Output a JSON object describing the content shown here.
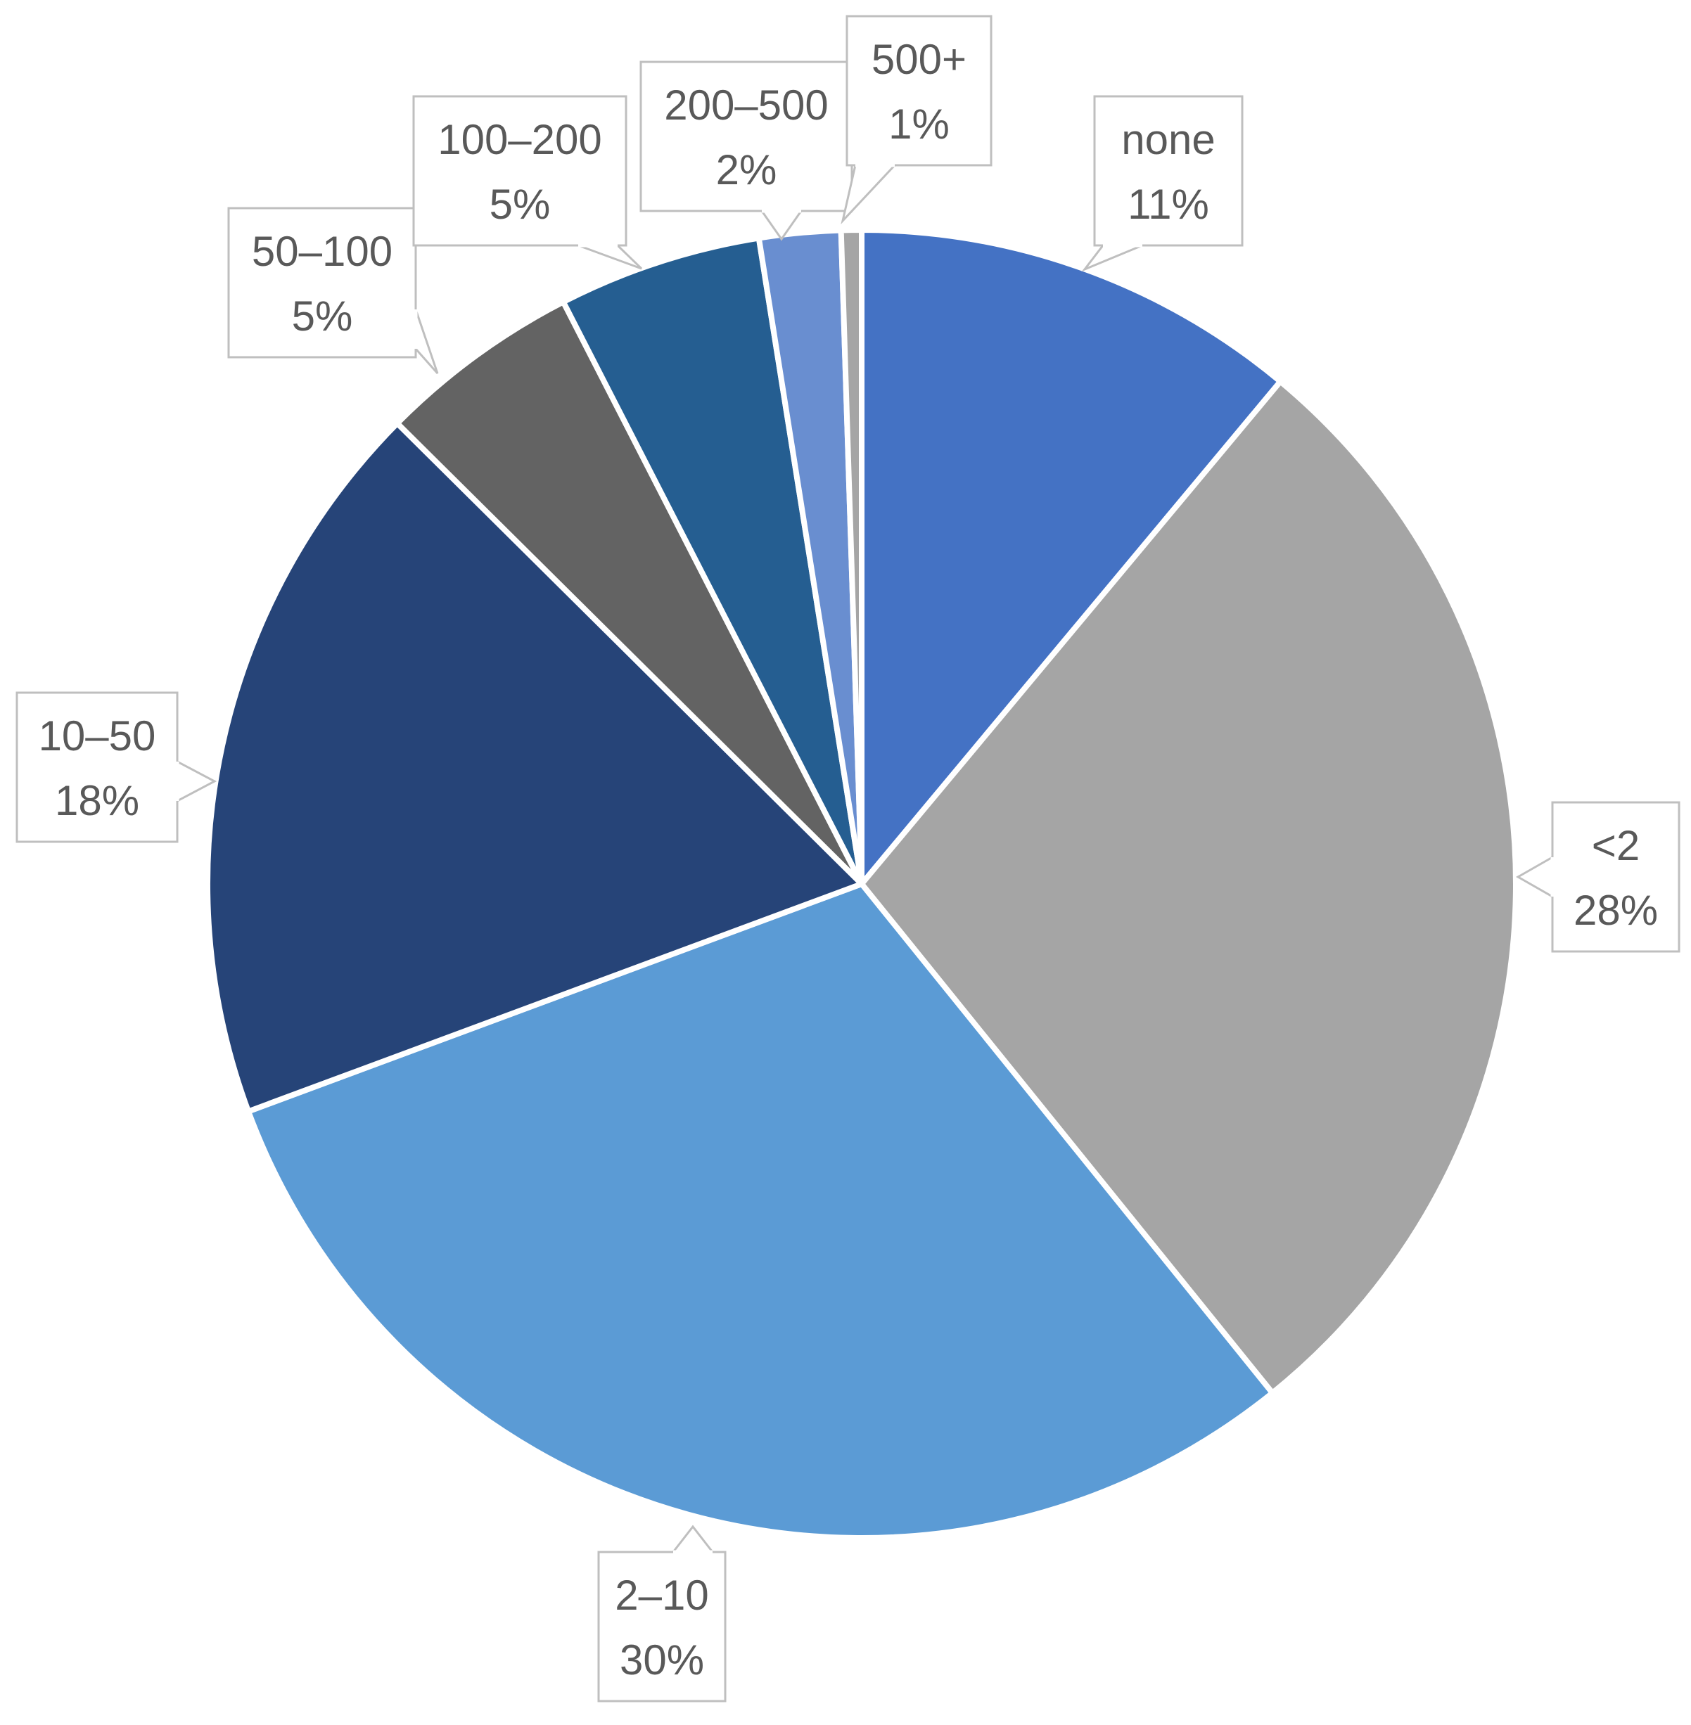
{
  "chart_data": {
    "type": "pie",
    "title": "",
    "start_angle_deg": 0,
    "direction": "clockwise",
    "slices": [
      {
        "label": "none",
        "value": 11,
        "value_label": "11%",
        "color": "#4472C4"
      },
      {
        "label": "<2",
        "value": 28,
        "value_label": "28%",
        "color": "#A5A5A5"
      },
      {
        "label": "2–10",
        "value": 30,
        "value_label": "30%",
        "color": "#5B9BD5"
      },
      {
        "label": "10–50",
        "value": 18,
        "value_label": "18%",
        "color": "#264478"
      },
      {
        "label": "50–100",
        "value": 5,
        "value_label": "5%",
        "color": "#636363"
      },
      {
        "label": "100–200",
        "value": 5,
        "value_label": "5%",
        "color": "#255E91"
      },
      {
        "label": "200–500",
        "value": 2,
        "value_label": "2%",
        "color": "#698ED0"
      },
      {
        "label": "500+",
        "value": 0.5,
        "value_label": "1%",
        "color": "#A5A5A5"
      }
    ],
    "data_labels": "callout",
    "legend": "none"
  }
}
